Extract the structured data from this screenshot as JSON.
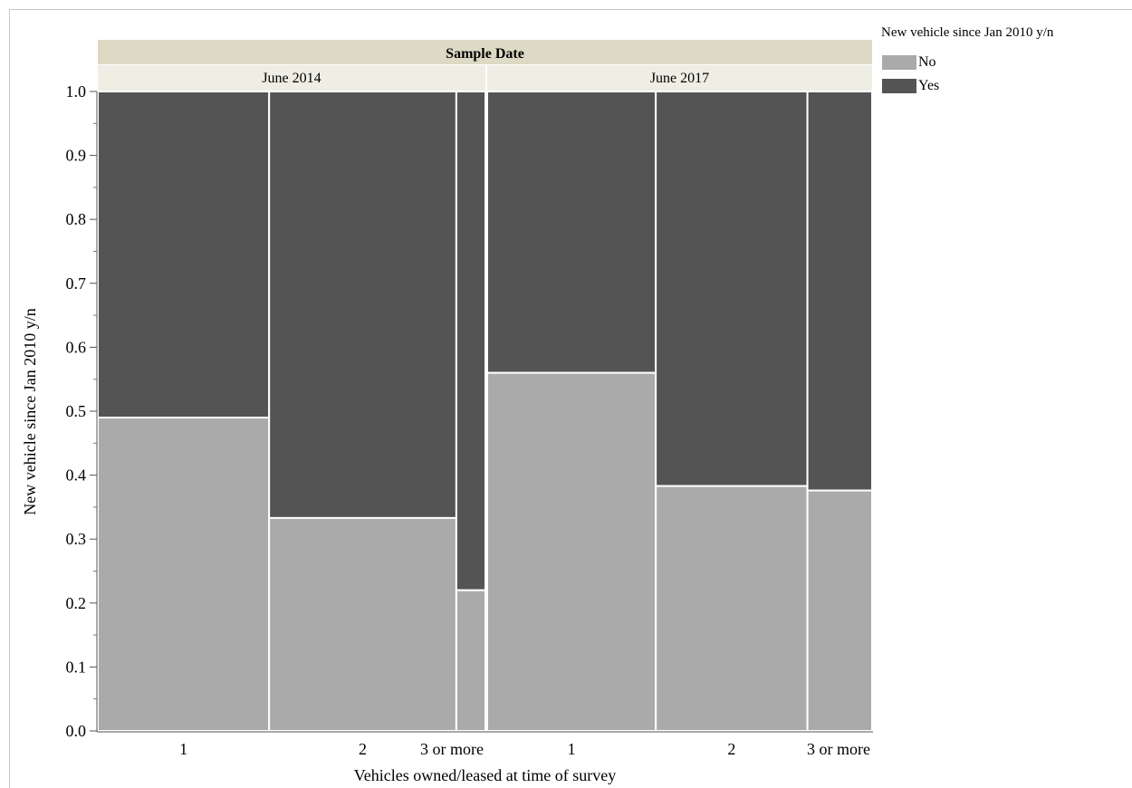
{
  "chart_data": {
    "type": "mosaic",
    "facet_header": "Sample Date",
    "panels": [
      {
        "label": "June 2014",
        "bars": [
          {
            "category": "1",
            "width_share": 0.442,
            "No": 0.49,
            "Yes": 0.51
          },
          {
            "category": "2",
            "width_share": 0.483,
            "No": 0.333,
            "Yes": 0.667
          },
          {
            "category": "3 or more",
            "width_share": 0.075,
            "No": 0.22,
            "Yes": 0.78
          }
        ]
      },
      {
        "label": "June 2017",
        "bars": [
          {
            "category": "1",
            "width_share": 0.438,
            "No": 0.56,
            "Yes": 0.44
          },
          {
            "category": "2",
            "width_share": 0.394,
            "No": 0.383,
            "Yes": 0.617
          },
          {
            "category": "3 or more",
            "width_share": 0.168,
            "No": 0.376,
            "Yes": 0.624
          }
        ]
      }
    ],
    "series": [
      {
        "name": "No",
        "color": "#aaaaaa"
      },
      {
        "name": "Yes",
        "color": "#545454"
      }
    ],
    "ylabel": "New vehicle since Jan 2010 y/n",
    "xlabel": "Vehicles owned/leased at time of survey",
    "ylim": [
      0,
      1
    ],
    "yticks": [
      "0.0",
      "0.1",
      "0.2",
      "0.3",
      "0.4",
      "0.5",
      "0.6",
      "0.7",
      "0.8",
      "0.9",
      "1.0"
    ],
    "legend": {
      "title": "New vehicle since Jan 2010 y/n",
      "position": "top-right"
    }
  }
}
